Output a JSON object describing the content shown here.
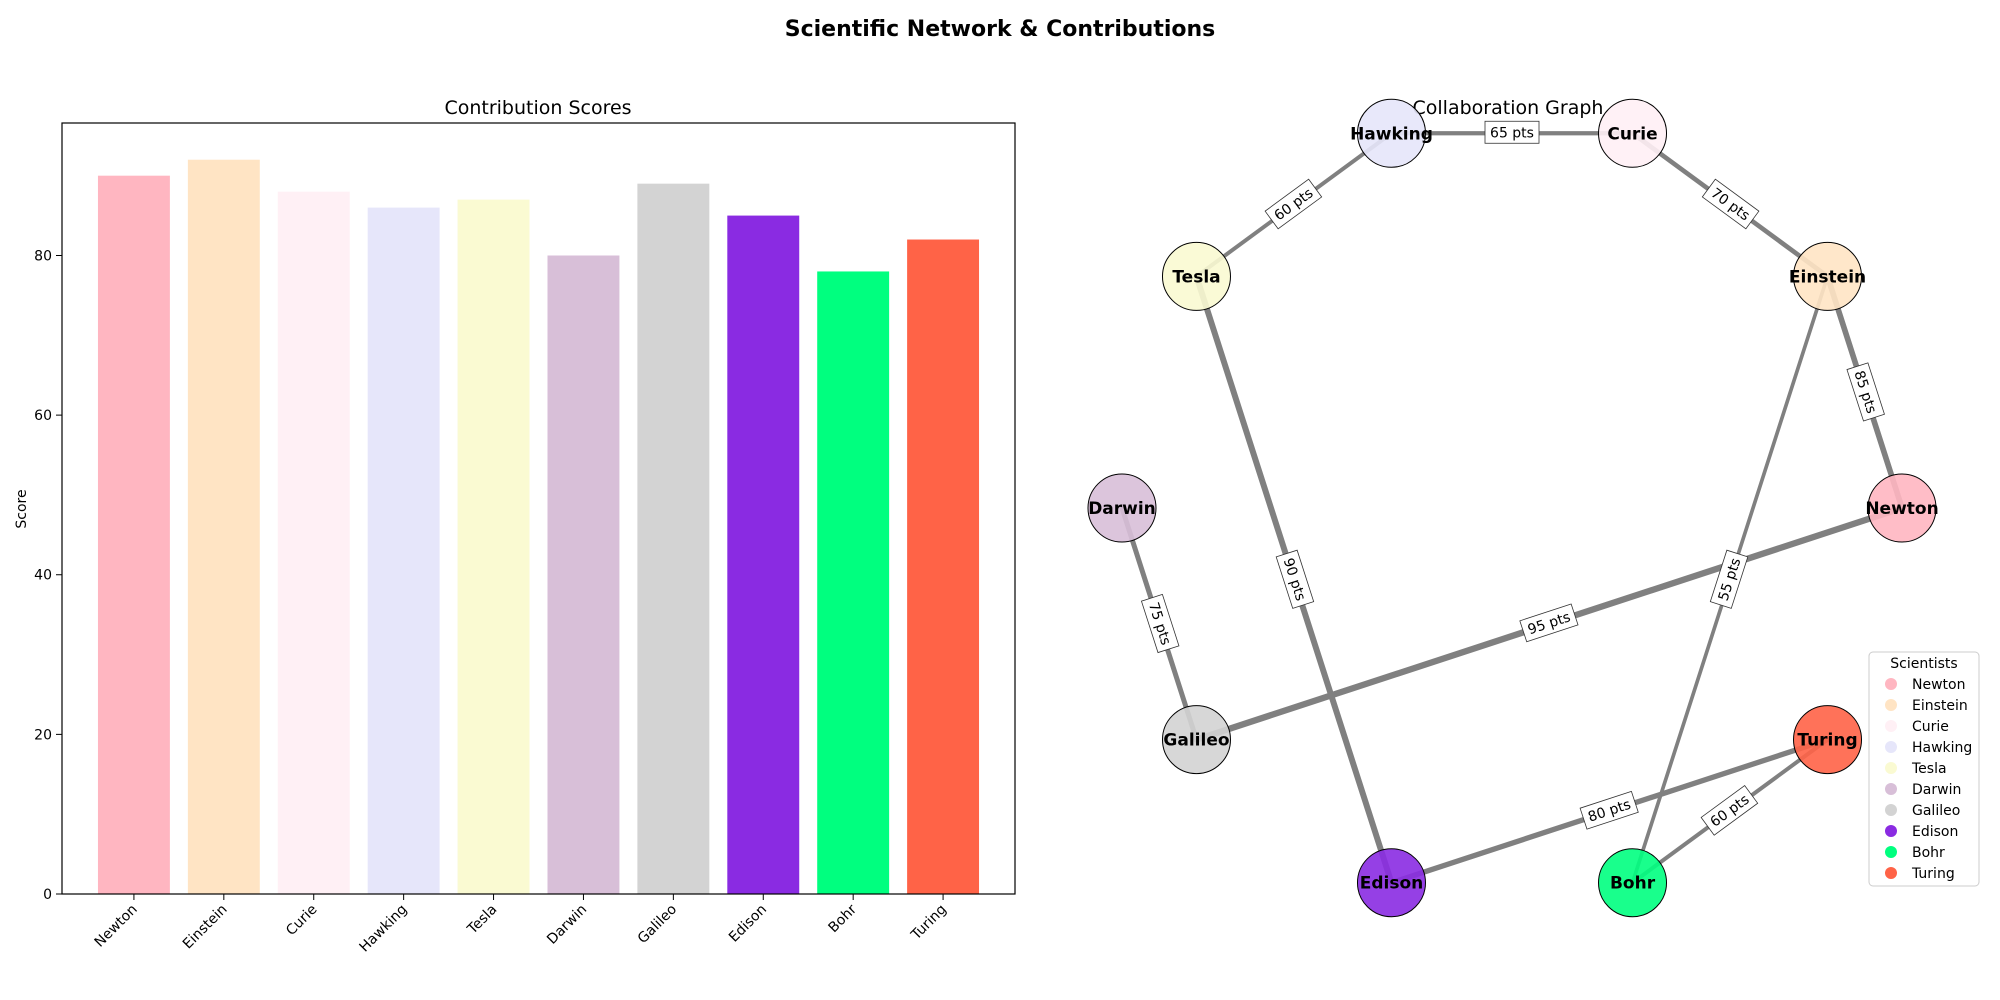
{
  "figure": {
    "title": "Scientific Network & Contributions"
  },
  "chart_data": [
    {
      "type": "bar",
      "title": "Contribution Scores",
      "xlabel": "",
      "ylabel": "Score",
      "categories": [
        "Newton",
        "Einstein",
        "Curie",
        "Hawking",
        "Tesla",
        "Darwin",
        "Galileo",
        "Edison",
        "Bohr",
        "Turing"
      ],
      "values": [
        90,
        92,
        88,
        86,
        87,
        80,
        89,
        85,
        78,
        82
      ],
      "colors": [
        "#FFB6C1",
        "#FFE4C4",
        "#FFF0F5",
        "#E6E6FA",
        "#FAFAD2",
        "#D8BFD8",
        "#D3D3D3",
        "#8A2BE2",
        "#00FF7F",
        "#FF6347"
      ],
      "ylim": [
        0,
        96.6
      ],
      "yticks": [
        0,
        20,
        40,
        60,
        80
      ],
      "grid": false
    },
    {
      "type": "network",
      "title": "Collaboration Graph",
      "nodes": [
        "Newton",
        "Einstein",
        "Curie",
        "Hawking",
        "Tesla",
        "Darwin",
        "Galileo",
        "Edison",
        "Bohr",
        "Turing"
      ],
      "edges": [
        {
          "source": "Newton",
          "target": "Einstein",
          "weight": 85,
          "label": "85 pts"
        },
        {
          "source": "Newton",
          "target": "Galileo",
          "weight": 95,
          "label": "95 pts"
        },
        {
          "source": "Einstein",
          "target": "Curie",
          "weight": 70,
          "label": "70 pts"
        },
        {
          "source": "Einstein",
          "target": "Bohr",
          "weight": 55,
          "label": "55 pts"
        },
        {
          "source": "Curie",
          "target": "Hawking",
          "weight": 65,
          "label": "65 pts"
        },
        {
          "source": "Hawking",
          "target": "Tesla",
          "weight": 60,
          "label": "60 pts"
        },
        {
          "source": "Tesla",
          "target": "Edison",
          "weight": 90,
          "label": "90 pts"
        },
        {
          "source": "Darwin",
          "target": "Galileo",
          "weight": 75,
          "label": "75 pts"
        },
        {
          "source": "Edison",
          "target": "Turing",
          "weight": 80,
          "label": "80 pts"
        },
        {
          "source": "Bohr",
          "target": "Turing",
          "weight": 60,
          "label": "60 pts"
        }
      ],
      "edge_color": "#808080",
      "legend": {
        "title": "Scientists",
        "position": "lower-right"
      }
    }
  ]
}
